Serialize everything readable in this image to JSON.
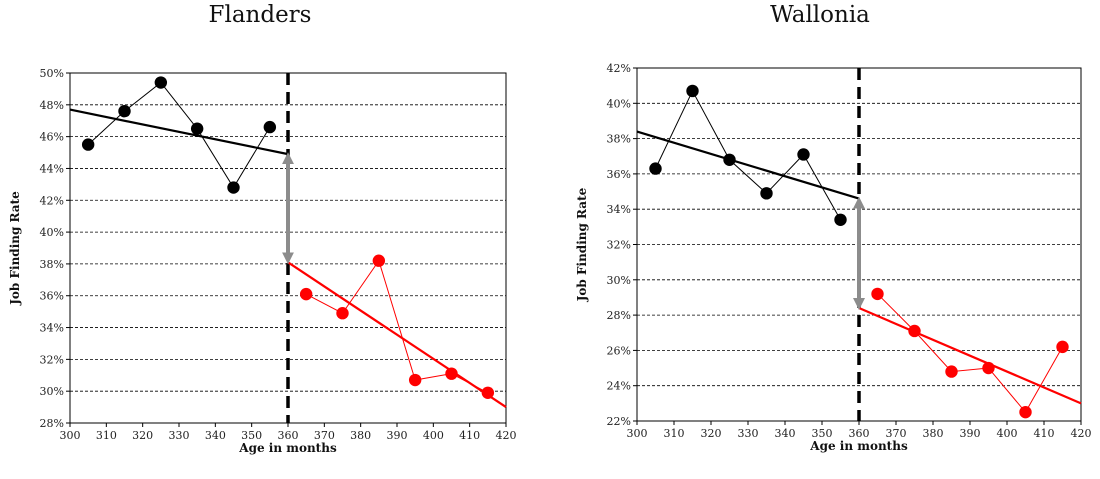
{
  "chart_data": [
    {
      "type": "scatter",
      "title": "Flanders",
      "xlabel": "Age in months",
      "ylabel": "Job Finding Rate",
      "xlim": [
        300,
        420
      ],
      "ylim": [
        0.28,
        0.5
      ],
      "x_ticks": [
        "300",
        "310",
        "320",
        "330",
        "340",
        "350",
        "360",
        "370",
        "380",
        "390",
        "400",
        "410",
        "420"
      ],
      "y_ticks": [
        "28%",
        "30%",
        "32%",
        "34%",
        "36%",
        "38%",
        "40%",
        "42%",
        "44%",
        "46%",
        "48%",
        "50%"
      ],
      "cutoff": 360,
      "series": [
        {
          "color": "#000000",
          "x": [
            305,
            315,
            325,
            335,
            345,
            355
          ],
          "y": [
            0.455,
            0.476,
            0.494,
            0.465,
            0.428,
            0.466
          ]
        },
        {
          "color": "#ff0000",
          "x": [
            365,
            375,
            385,
            395,
            405,
            415
          ],
          "y": [
            0.361,
            0.349,
            0.382,
            0.307,
            0.311,
            0.299
          ]
        }
      ],
      "fits": [
        {
          "color": "#000000",
          "x": [
            300,
            360
          ],
          "y": [
            0.477,
            0.449
          ]
        },
        {
          "color": "#ff0000",
          "x": [
            360,
            420
          ],
          "y": [
            0.381,
            0.29
          ]
        }
      ],
      "gap_arrow": {
        "x": 360,
        "y": [
          0.449,
          0.381
        ],
        "color": "#8c8c8c"
      }
    },
    {
      "type": "scatter",
      "title": "Wallonia",
      "xlabel": "Age in months",
      "ylabel": "Job Finding Rate",
      "xlim": [
        300,
        420
      ],
      "ylim": [
        0.22,
        0.42
      ],
      "x_ticks": [
        "300",
        "310",
        "320",
        "330",
        "340",
        "350",
        "360",
        "370",
        "380",
        "390",
        "400",
        "410",
        "420"
      ],
      "y_ticks": [
        "22%",
        "24%",
        "26%",
        "28%",
        "30%",
        "32%",
        "34%",
        "36%",
        "38%",
        "40%",
        "42%"
      ],
      "cutoff": 360,
      "series": [
        {
          "color": "#000000",
          "x": [
            305,
            315,
            325,
            335,
            345,
            355
          ],
          "y": [
            0.363,
            0.407,
            0.368,
            0.349,
            0.371,
            0.334
          ]
        },
        {
          "color": "#ff0000",
          "x": [
            365,
            375,
            385,
            395,
            405,
            415
          ],
          "y": [
            0.292,
            0.271,
            0.248,
            0.25,
            0.225,
            0.262
          ]
        }
      ],
      "fits": [
        {
          "color": "#000000",
          "x": [
            300,
            360
          ],
          "y": [
            0.384,
            0.346
          ]
        },
        {
          "color": "#ff0000",
          "x": [
            360,
            420
          ],
          "y": [
            0.284,
            0.23
          ]
        }
      ],
      "gap_arrow": {
        "x": 360,
        "y": [
          0.346,
          0.284
        ],
        "color": "#8c8c8c"
      }
    }
  ]
}
